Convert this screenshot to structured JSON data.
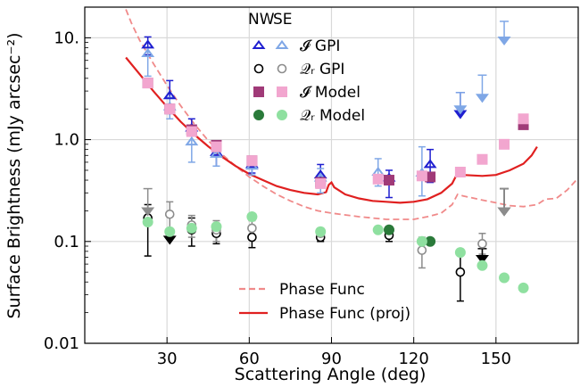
{
  "chart_data": {
    "type": "scatter",
    "xlabel": "Scattering Angle (deg)",
    "ylabel": "Surface Brightness (mJy arcsec⁻²)",
    "xlim": [
      0,
      180
    ],
    "ylim": [
      0.01,
      20
    ],
    "yscale": "log",
    "grid": true,
    "legend_placement": "top-center",
    "x_ticks": [
      {
        "value": 30,
        "label": "30"
      },
      {
        "value": 60,
        "label": "60"
      },
      {
        "value": 90,
        "label": "90"
      },
      {
        "value": 120,
        "label": "120"
      },
      {
        "value": 150,
        "label": "150"
      }
    ],
    "y_ticks": [
      {
        "value": 0.01,
        "label": "0.01"
      },
      {
        "value": 0.1,
        "label": "0.1"
      },
      {
        "value": 1.0,
        "label": "1.0"
      },
      {
        "value": 10,
        "label": "10."
      }
    ],
    "legend": {
      "column_headers": [
        "NW",
        "SE"
      ],
      "entries": [
        {
          "label": "𝓘 GPI",
          "marker": "triangle-open",
          "colors": [
            "#1f1fd0",
            "#7fa7e6"
          ]
        },
        {
          "label": "𝒬ᵣ GPI",
          "marker": "circle-open",
          "colors": [
            "#000000",
            "#8c8c8c"
          ]
        },
        {
          "label": "𝓘  Model",
          "marker": "square",
          "colors": [
            "#a03a78",
            "#f2a6cf"
          ]
        },
        {
          "label": "𝒬ᵣ Model",
          "marker": "circle",
          "colors": [
            "#2a7a3a",
            "#8fe0a0"
          ]
        }
      ],
      "line_entries": [
        {
          "label": "Phase Func",
          "style": "dashed",
          "color": "#f08a8a"
        },
        {
          "label": "Phase Func (proj)",
          "style": "solid",
          "color": "#e02020"
        }
      ]
    },
    "colors": {
      "I_GPI_NW": "#1f1fd0",
      "I_GPI_SE": "#7fa7e6",
      "Q_GPI_NW": "#000000",
      "Q_GPI_SE": "#8c8c8c",
      "I_Model_NW": "#a03a78",
      "I_Model_SE": "#f2a6cf",
      "Q_Model_NW": "#2a7a3a",
      "Q_Model_SE": "#8fe0a0",
      "phase": "#f08a8a",
      "phase_proj": "#e02020"
    },
    "series": [
      {
        "key": "I_GPI_NW",
        "marker": "triangle-open",
        "color": "#1f1fd0",
        "points": [
          {
            "x": 23,
            "y": 8.5,
            "lo": 6.8,
            "hi": 10.2
          },
          {
            "x": 31,
            "y": 2.7,
            "lo": 2.1,
            "hi": 3.8
          },
          {
            "x": 39,
            "y": 1.3,
            "lo": 1.1,
            "hi": 1.6
          },
          {
            "x": 48,
            "y": 0.75,
            "lo": 0.55,
            "hi": 0.95
          },
          {
            "x": 61,
            "y": 0.57,
            "lo": 0.47,
            "hi": 0.67
          },
          {
            "x": 86,
            "y": 0.45,
            "lo": 0.35,
            "hi": 0.57
          },
          {
            "x": 111,
            "y": 0.42,
            "lo": 0.27,
            "hi": 0.5
          },
          {
            "x": 126,
            "y": 0.57,
            "lo": 0.38,
            "hi": 0.8
          }
        ]
      },
      {
        "key": "I_GPI_SE",
        "marker": "triangle-open",
        "color": "#7fa7e6",
        "points": [
          {
            "x": 23,
            "y": 7.0,
            "lo": 4.2,
            "hi": 8.0
          },
          {
            "x": 31,
            "y": 2.1,
            "lo": 1.6,
            "hi": 2.6
          },
          {
            "x": 39,
            "y": 0.95,
            "lo": 0.6,
            "hi": 1.3
          },
          {
            "x": 48,
            "y": 0.72,
            "lo": 0.55,
            "hi": 0.9
          },
          {
            "x": 61,
            "y": 0.55,
            "lo": 0.45,
            "hi": 0.65
          },
          {
            "x": 86,
            "y": 0.42,
            "lo": 0.3,
            "hi": 0.52
          },
          {
            "x": 107,
            "y": 0.48,
            "lo": 0.35,
            "hi": 0.65
          },
          {
            "x": 123,
            "y": 0.47,
            "lo": 0.28,
            "hi": 0.85
          }
        ]
      },
      {
        "key": "I_GPI_UL_NW",
        "marker": "upper-limit",
        "color": "#1f1fd0",
        "points": [
          {
            "x": 137,
            "y": 1.8,
            "top": 2.9
          }
        ]
      },
      {
        "key": "I_GPI_UL_SE",
        "marker": "upper-limit",
        "color": "#7fa7e6",
        "points": [
          {
            "x": 137,
            "y": 2.0,
            "top": 2.9
          },
          {
            "x": 145,
            "y": 2.6,
            "top": 4.3
          },
          {
            "x": 153,
            "y": 9.5,
            "top": 14.5
          }
        ]
      },
      {
        "key": "Q_GPI_NW",
        "marker": "circle-open",
        "color": "#000000",
        "points": [
          {
            "x": 23,
            "y": 0.17,
            "lo": 0.072,
            "hi": 0.23
          },
          {
            "x": 39,
            "y": 0.13,
            "lo": 0.09,
            "hi": 0.17
          },
          {
            "x": 48,
            "y": 0.12,
            "lo": 0.095,
            "hi": 0.145
          },
          {
            "x": 61,
            "y": 0.11,
            "lo": 0.087,
            "hi": 0.135
          },
          {
            "x": 86,
            "y": 0.11,
            "lo": 0.1,
            "hi": 0.12
          },
          {
            "x": 111,
            "y": 0.115,
            "lo": 0.1,
            "hi": 0.135
          },
          {
            "x": 137,
            "y": 0.05,
            "lo": 0.026,
            "hi": 0.08
          }
        ]
      },
      {
        "key": "Q_GPI_SE",
        "marker": "circle-open",
        "color": "#8c8c8c",
        "points": [
          {
            "x": 31,
            "y": 0.185,
            "lo": 0.13,
            "hi": 0.245
          },
          {
            "x": 39,
            "y": 0.145,
            "lo": 0.11,
            "hi": 0.18
          },
          {
            "x": 48,
            "y": 0.13,
            "lo": 0.1,
            "hi": 0.16
          },
          {
            "x": 61,
            "y": 0.135,
            "lo": 0.11,
            "hi": 0.16
          },
          {
            "x": 86,
            "y": 0.12,
            "lo": 0.105,
            "hi": 0.135
          },
          {
            "x": 123,
            "y": 0.082,
            "lo": 0.055,
            "hi": 0.11
          },
          {
            "x": 145,
            "y": 0.095,
            "lo": 0.075,
            "hi": 0.12
          }
        ]
      },
      {
        "key": "Q_GPI_UL_NW",
        "marker": "upper-limit-filled",
        "color": "#000000",
        "points": [
          {
            "x": 31,
            "y": 0.105,
            "top": 0.118
          },
          {
            "x": 145,
            "y": 0.068,
            "top": 0.085
          },
          {
            "x": 153,
            "y": 0.2,
            "top": 0.33
          }
        ]
      },
      {
        "key": "Q_GPI_UL_SE",
        "marker": "upper-limit-filled",
        "color": "#8c8c8c",
        "points": [
          {
            "x": 23,
            "y": 0.2,
            "top": 0.33
          },
          {
            "x": 153,
            "y": 0.2,
            "top": 0.33
          }
        ]
      },
      {
        "key": "I_Model_NW",
        "marker": "square",
        "color": "#a03a78",
        "points": [
          {
            "x": 23,
            "y": 3.6
          },
          {
            "x": 31,
            "y": 2.0
          },
          {
            "x": 39,
            "y": 1.25
          },
          {
            "x": 48,
            "y": 0.88
          },
          {
            "x": 61,
            "y": 0.62
          },
          {
            "x": 86,
            "y": 0.38
          },
          {
            "x": 111,
            "y": 0.4
          },
          {
            "x": 126,
            "y": 0.43
          },
          {
            "x": 160,
            "y": 1.4
          }
        ]
      },
      {
        "key": "I_Model_SE",
        "marker": "square",
        "color": "#f2a6cf",
        "points": [
          {
            "x": 23,
            "y": 3.6
          },
          {
            "x": 31,
            "y": 2.0
          },
          {
            "x": 39,
            "y": 1.2
          },
          {
            "x": 48,
            "y": 0.85
          },
          {
            "x": 61,
            "y": 0.62
          },
          {
            "x": 86,
            "y": 0.37
          },
          {
            "x": 107,
            "y": 0.41
          },
          {
            "x": 123,
            "y": 0.44
          },
          {
            "x": 137,
            "y": 0.48
          },
          {
            "x": 145,
            "y": 0.64
          },
          {
            "x": 153,
            "y": 0.9
          },
          {
            "x": 160,
            "y": 1.6
          }
        ]
      },
      {
        "key": "Q_Model_NW",
        "marker": "circle",
        "color": "#2a7a3a",
        "points": [
          {
            "x": 111,
            "y": 0.13
          },
          {
            "x": 126,
            "y": 0.1
          }
        ]
      },
      {
        "key": "Q_Model_SE",
        "marker": "circle",
        "color": "#8fe0a0",
        "points": [
          {
            "x": 23,
            "y": 0.155
          },
          {
            "x": 31,
            "y": 0.125
          },
          {
            "x": 39,
            "y": 0.135
          },
          {
            "x": 48,
            "y": 0.14
          },
          {
            "x": 61,
            "y": 0.175
          },
          {
            "x": 86,
            "y": 0.125
          },
          {
            "x": 107,
            "y": 0.13
          },
          {
            "x": 123,
            "y": 0.1
          },
          {
            "x": 137,
            "y": 0.078
          },
          {
            "x": 145,
            "y": 0.058
          },
          {
            "x": 153,
            "y": 0.044
          },
          {
            "x": 160,
            "y": 0.035
          }
        ]
      }
    ],
    "curves": [
      {
        "key": "phase",
        "style": "dashed",
        "color": "#f08a8a",
        "points": [
          [
            15,
            19
          ],
          [
            17,
            14
          ],
          [
            20,
            9.5
          ],
          [
            25,
            5.6
          ],
          [
            30,
            3.4
          ],
          [
            35,
            2.15
          ],
          [
            40,
            1.42
          ],
          [
            45,
            0.98
          ],
          [
            50,
            0.72
          ],
          [
            55,
            0.55
          ],
          [
            60,
            0.43
          ],
          [
            65,
            0.35
          ],
          [
            70,
            0.29
          ],
          [
            75,
            0.25
          ],
          [
            80,
            0.22
          ],
          [
            85,
            0.2
          ],
          [
            90,
            0.19
          ],
          [
            100,
            0.175
          ],
          [
            110,
            0.165
          ],
          [
            120,
            0.165
          ],
          [
            125,
            0.175
          ],
          [
            130,
            0.19
          ],
          [
            134,
            0.23
          ],
          [
            136,
            0.29
          ],
          [
            138,
            0.28
          ],
          [
            145,
            0.255
          ],
          [
            150,
            0.24
          ],
          [
            155,
            0.225
          ],
          [
            160,
            0.22
          ],
          [
            165,
            0.23
          ],
          [
            168,
            0.26
          ],
          [
            172,
            0.265
          ],
          [
            176,
            0.32
          ],
          [
            180,
            0.42
          ]
        ]
      },
      {
        "key": "phase_proj",
        "style": "solid",
        "color": "#e02020",
        "points": [
          [
            15,
            6.4
          ],
          [
            20,
            4.4
          ],
          [
            25,
            3.0
          ],
          [
            30,
            2.1
          ],
          [
            35,
            1.5
          ],
          [
            40,
            1.12
          ],
          [
            45,
            0.86
          ],
          [
            50,
            0.68
          ],
          [
            55,
            0.55
          ],
          [
            60,
            0.46
          ],
          [
            65,
            0.4
          ],
          [
            70,
            0.35
          ],
          [
            75,
            0.32
          ],
          [
            80,
            0.3
          ],
          [
            85,
            0.29
          ],
          [
            88,
            0.305
          ],
          [
            89,
            0.36
          ],
          [
            90,
            0.38
          ],
          [
            91,
            0.34
          ],
          [
            95,
            0.29
          ],
          [
            100,
            0.265
          ],
          [
            105,
            0.25
          ],
          [
            110,
            0.245
          ],
          [
            115,
            0.24
          ],
          [
            120,
            0.245
          ],
          [
            125,
            0.26
          ],
          [
            130,
            0.3
          ],
          [
            134,
            0.37
          ],
          [
            136,
            0.47
          ],
          [
            138,
            0.45
          ],
          [
            145,
            0.44
          ],
          [
            150,
            0.45
          ],
          [
            155,
            0.5
          ],
          [
            160,
            0.58
          ],
          [
            163,
            0.7
          ],
          [
            165,
            0.85
          ]
        ]
      }
    ]
  }
}
